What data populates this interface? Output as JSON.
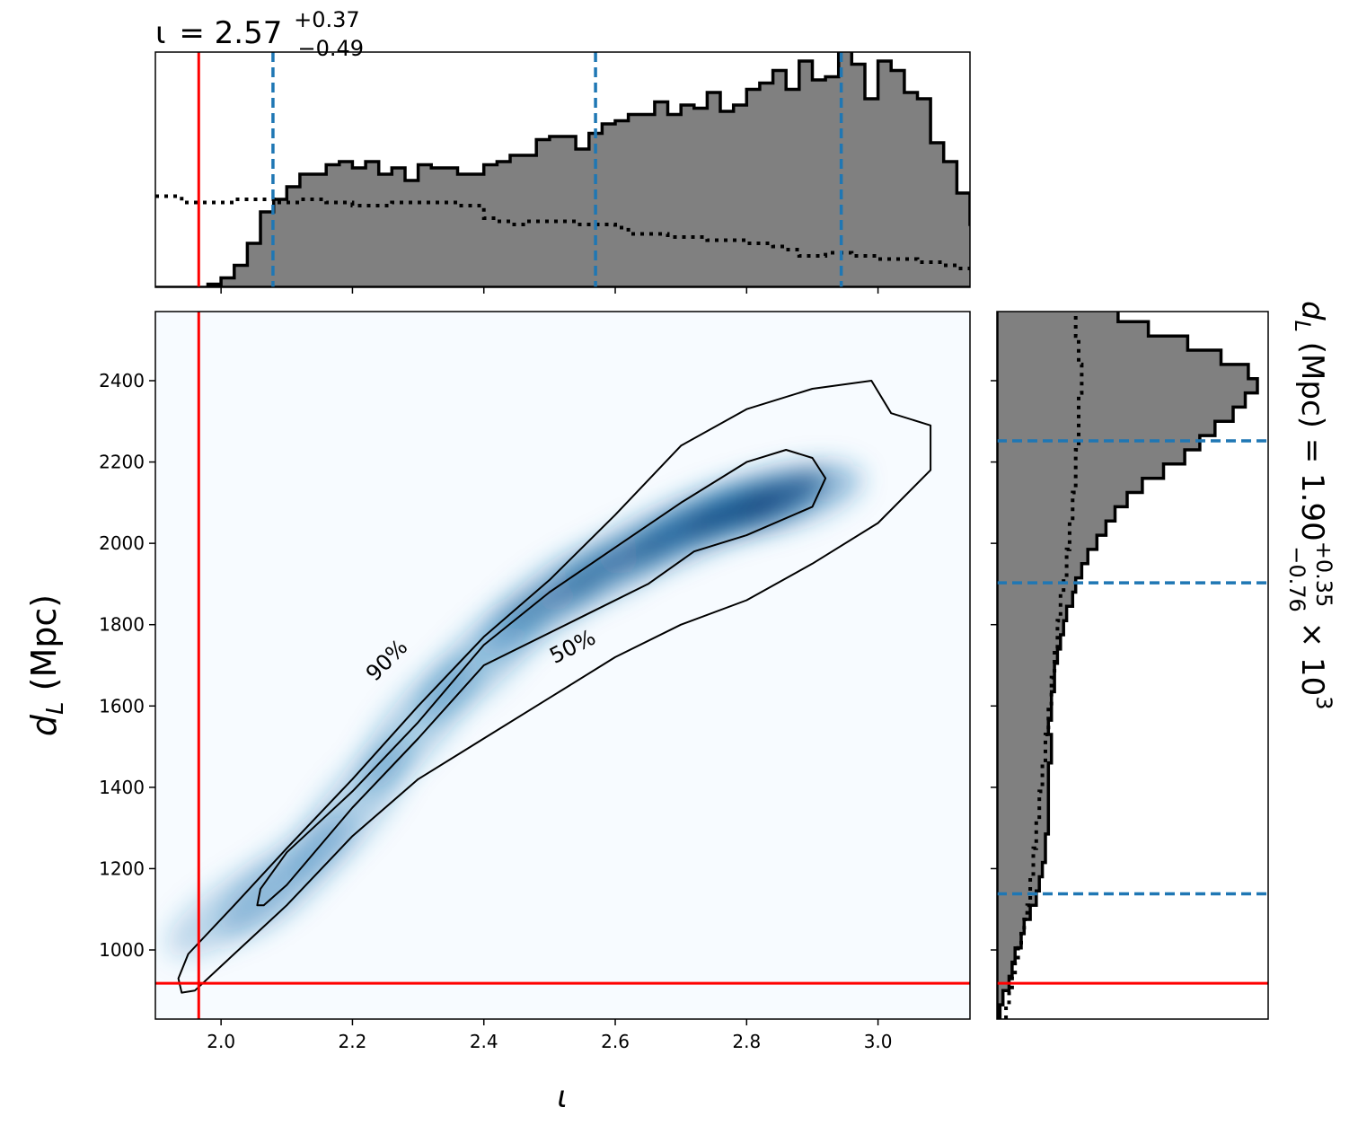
{
  "title": {
    "symbol": "ι",
    "value": "= 2.57",
    "upper": "+0.37",
    "lower": "−0.49"
  },
  "right_label": {
    "prefix": "d",
    "sub": "L",
    "rest": " (Mpc) = 1.90",
    "upper": "+0.35",
    "lower": "−0.76",
    "suffix": " × 10",
    "exp": "3"
  },
  "xlabel": "ι",
  "ylabel": {
    "main": "d",
    "sub": "L",
    "rest": " (Mpc)"
  },
  "colors": {
    "truth": "#ff0000",
    "quantile": "#1f77b4",
    "hist_fill": "#808080",
    "hist_edge": "#000000",
    "density_high": "#08306b",
    "density_low": "#f7fbff"
  },
  "chart_data": [
    {
      "type": "heatmap",
      "name": "joint posterior",
      "xlabel": "ι",
      "ylabel": "d_L (Mpc)",
      "xlim": [
        1.9,
        3.14
      ],
      "ylim": [
        830,
        2570
      ],
      "xticks": [
        2.0,
        2.2,
        2.4,
        2.6,
        2.8,
        3.0
      ],
      "xtick_labels": [
        "2.0",
        "2.2",
        "2.4",
        "2.6",
        "2.8",
        "3.0"
      ],
      "yticks": [
        1000,
        1200,
        1400,
        1600,
        1800,
        2000,
        2200,
        2400
      ],
      "ytick_labels": [
        "1000",
        "1200",
        "1400",
        "1600",
        "1800",
        "2000",
        "2200",
        "2400"
      ],
      "contour_labels": [
        "90%",
        "50%"
      ],
      "contours": {
        "90": [
          [
            1.935,
            930
          ],
          [
            1.95,
            990
          ],
          [
            2.02,
            1110
          ],
          [
            2.1,
            1250
          ],
          [
            2.2,
            1420
          ],
          [
            2.3,
            1600
          ],
          [
            2.4,
            1770
          ],
          [
            2.5,
            1910
          ],
          [
            2.6,
            2070
          ],
          [
            2.7,
            2240
          ],
          [
            2.8,
            2330
          ],
          [
            2.9,
            2380
          ],
          [
            2.99,
            2400
          ],
          [
            3.02,
            2320
          ],
          [
            3.08,
            2290
          ],
          [
            3.08,
            2180
          ],
          [
            3.0,
            2050
          ],
          [
            2.9,
            1950
          ],
          [
            2.8,
            1860
          ],
          [
            2.7,
            1800
          ],
          [
            2.6,
            1720
          ],
          [
            2.5,
            1620
          ],
          [
            2.4,
            1520
          ],
          [
            2.3,
            1420
          ],
          [
            2.2,
            1280
          ],
          [
            2.1,
            1110
          ],
          [
            2.0,
            960
          ],
          [
            1.96,
            900
          ],
          [
            1.94,
            895
          ]
        ],
        "50": [
          [
            2.055,
            1110
          ],
          [
            2.06,
            1150
          ],
          [
            2.1,
            1240
          ],
          [
            2.2,
            1390
          ],
          [
            2.3,
            1560
          ],
          [
            2.4,
            1750
          ],
          [
            2.5,
            1880
          ],
          [
            2.6,
            1990
          ],
          [
            2.7,
            2100
          ],
          [
            2.8,
            2200
          ],
          [
            2.86,
            2230
          ],
          [
            2.9,
            2210
          ],
          [
            2.92,
            2160
          ],
          [
            2.9,
            2090
          ],
          [
            2.8,
            2020
          ],
          [
            2.72,
            1980
          ],
          [
            2.65,
            1900
          ],
          [
            2.55,
            1820
          ],
          [
            2.4,
            1700
          ],
          [
            2.3,
            1520
          ],
          [
            2.2,
            1350
          ],
          [
            2.1,
            1160
          ],
          [
            2.065,
            1110
          ]
        ]
      },
      "truth": {
        "x": 1.966,
        "y": 918
      },
      "density_ridge": [
        [
          2.03,
          1110
        ],
        [
          2.1,
          1180
        ],
        [
          2.2,
          1350
        ],
        [
          2.3,
          1560
        ],
        [
          2.4,
          1720
        ],
        [
          2.5,
          1860
        ],
        [
          2.6,
          1950
        ],
        [
          2.7,
          2030
        ],
        [
          2.78,
          2080
        ],
        [
          2.85,
          2110
        ]
      ]
    },
    {
      "type": "bar",
      "name": "ι marginal",
      "xlim": [
        1.9,
        3.14
      ],
      "bin_edges_start": 1.9,
      "bin_width": 0.02,
      "values": [
        0,
        0,
        0,
        0,
        1,
        3,
        7,
        14,
        24,
        28,
        32,
        36,
        36,
        39,
        40,
        38,
        40,
        36,
        38,
        34,
        39,
        38,
        38,
        36,
        36,
        39,
        40,
        42,
        42,
        47,
        48,
        48,
        44,
        49,
        52,
        53,
        55,
        55,
        59,
        55,
        58,
        57,
        62,
        56,
        58,
        63,
        65,
        69,
        63,
        72,
        66,
        67,
        77,
        71,
        60,
        72,
        69,
        62,
        60,
        46,
        40,
        30,
        20,
        14,
        10,
        5,
        3,
        1
      ],
      "prior_dotted": [
        29,
        29,
        27,
        27,
        27,
        27,
        28,
        28,
        28,
        27,
        27,
        28,
        28,
        27,
        27,
        26,
        26,
        26,
        27,
        27,
        27,
        27,
        27,
        26,
        26,
        22,
        21,
        20,
        21,
        21,
        21,
        21,
        20,
        20,
        20,
        19,
        17,
        17,
        17,
        16,
        16,
        16,
        15,
        15,
        15,
        14,
        14,
        13,
        12,
        10,
        10,
        11,
        11,
        10,
        10,
        9,
        9,
        9,
        8,
        8,
        7,
        6,
        6,
        5,
        5,
        4,
        3,
        3
      ],
      "quantiles": [
        2.079,
        2.57,
        2.944
      ],
      "xticks": [
        2.0,
        2.2,
        2.4,
        2.6,
        2.8,
        3.0
      ],
      "truth": 1.966
    },
    {
      "type": "bar",
      "orientation": "horizontal",
      "name": "d_L marginal",
      "ylim": [
        830,
        2570
      ],
      "bin_edges_start": 830,
      "bin_width": 35,
      "values": [
        1,
        2,
        4,
        5,
        6,
        8,
        9,
        11,
        13,
        14,
        15,
        16,
        16,
        17,
        17,
        17,
        17,
        17,
        18,
        18,
        17,
        18,
        18,
        19,
        19,
        20,
        21,
        22,
        23,
        25,
        26,
        28,
        30,
        33,
        36,
        39,
        43,
        48,
        55,
        62,
        67,
        72,
        78,
        82,
        86,
        83,
        74,
        63,
        50,
        40,
        30,
        24,
        18,
        14,
        10,
        7,
        5,
        3,
        2,
        1,
        1,
        0,
        0,
        0,
        0,
        0,
        0,
        0,
        0,
        0
      ],
      "prior_dotted": [
        3,
        4,
        5,
        6,
        7,
        8,
        9,
        10,
        11,
        11,
        12,
        12,
        13,
        13,
        14,
        14,
        15,
        15,
        16,
        16,
        17,
        17,
        18,
        18,
        19,
        19,
        20,
        20,
        21,
        21,
        22,
        23,
        23,
        24,
        24,
        25,
        25,
        26,
        26,
        26,
        27,
        27,
        27,
        27,
        28,
        28,
        27,
        27,
        26,
        26,
        25,
        24,
        23,
        22,
        22,
        23,
        24,
        26,
        28,
        30,
        32,
        34,
        35,
        36,
        36,
        36,
        36,
        36,
        36,
        36
      ],
      "quantiles": [
        1138,
        1903,
        2252
      ],
      "yticks": [
        1000,
        1200,
        1400,
        1600,
        1800,
        2000,
        2200,
        2400
      ],
      "truth": 918
    }
  ]
}
